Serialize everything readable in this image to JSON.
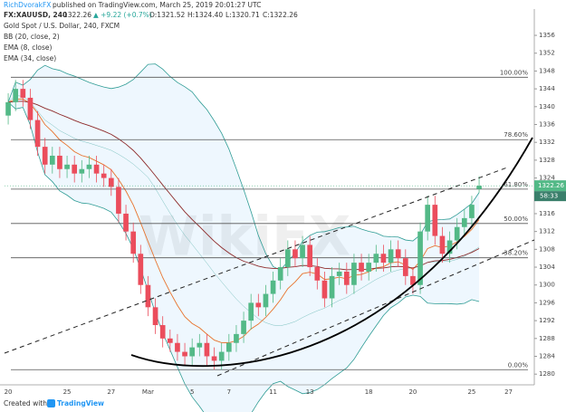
{
  "header": {
    "author": "RichDvorakFX",
    "published": "published on TradingView.com, March 25, 2019 20:01:27 UTC",
    "symbol": "FX:XAUUSD, 240",
    "last": "1322.26",
    "change": "▲ +9.22 (+0.7%)",
    "open": "O:1321.52",
    "high": "H:1324.40",
    "low": "L:1320.71",
    "close": "C:1322.26",
    "instrument": "Gold Spot / U.S. Dollar, 240, FXCM"
  },
  "footer": {
    "created": "Created with",
    "brand": "TradingView"
  },
  "watermark": "WikiFX",
  "chart_data": {
    "type": "candlestick",
    "categories": [
      "20",
      null,
      null,
      null,
      null,
      null,
      null,
      null,
      "25",
      null,
      null,
      null,
      null,
      null,
      "27",
      null,
      null,
      null,
      null,
      "Mar",
      null,
      null,
      null,
      null,
      null,
      "5",
      null,
      null,
      null,
      null,
      "7",
      null,
      null,
      null,
      null,
      null,
      "11",
      null,
      null,
      null,
      null,
      "13",
      null,
      null,
      null,
      null,
      null,
      null,
      null,
      "18",
      null,
      null,
      null,
      null,
      null,
      "20",
      null,
      null,
      null,
      null,
      null,
      null,
      null,
      "25",
      null,
      null,
      null,
      null,
      "27",
      null,
      null,
      null
    ],
    "series": [
      {
        "name": "open",
        "values": [
          1338,
          1341,
          1344,
          1342,
          1337,
          1331,
          1327,
          1329,
          1326,
          1327,
          1325,
          1326,
          1327,
          1325,
          1324,
          1322,
          1316,
          1312,
          1307,
          1300,
          1295,
          1291,
          1288,
          1287,
          1285,
          1284,
          1286,
          1287,
          1284,
          1283,
          1285,
          1287,
          1289,
          1292,
          1296,
          1295,
          1298,
          1301,
          1304,
          1308,
          1306,
          1309,
          1304,
          1301,
          1297,
          1302,
          1303,
          1300,
          1305,
          1303,
          1305,
          1307,
          1305,
          1308,
          1306,
          1302,
          1300,
          1312,
          1318,
          1311,
          1307,
          1310,
          1313,
          1315,
          1321.52,
          null,
          null,
          null,
          null,
          null,
          null,
          null
        ]
      },
      {
        "name": "high",
        "values": [
          1343,
          1346,
          1346,
          1344,
          1339,
          1333,
          1331,
          1331,
          1329,
          1329,
          1328,
          1329,
          1329,
          1327,
          1326,
          1324,
          1318,
          1314,
          1309,
          1302,
          1297,
          1293,
          1290,
          1289,
          1287,
          1288,
          1289,
          1289,
          1286,
          1287,
          1289,
          1291,
          1294,
          1298,
          1298,
          1300,
          1303,
          1306,
          1310,
          1310,
          1311,
          1311,
          1306,
          1303,
          1304,
          1305,
          1305,
          1307,
          1307,
          1307,
          1309,
          1309,
          1310,
          1310,
          1308,
          1304,
          1314,
          1320,
          1320,
          1313,
          1312,
          1315,
          1317,
          1320,
          1324.4,
          null,
          null,
          null,
          null,
          null,
          null,
          null
        ]
      },
      {
        "name": "low",
        "values": [
          1336,
          1339,
          1340,
          1335,
          1329,
          1325,
          1325,
          1324,
          1324,
          1323,
          1323,
          1324,
          1323,
          1322,
          1320,
          1314,
          1310,
          1305,
          1298,
          1293,
          1289,
          1286,
          1285,
          1283,
          1282,
          1282,
          1284,
          1282,
          1281,
          1281,
          1283,
          1285,
          1287,
          1290,
          1293,
          1293,
          1296,
          1299,
          1302,
          1304,
          1304,
          1302,
          1299,
          1295,
          1295,
          1300,
          1298,
          1298,
          1301,
          1301,
          1303,
          1303,
          1303,
          1304,
          1300,
          1298,
          1298,
          1310,
          1309,
          1305,
          1305,
          1308,
          1311,
          1313,
          1320.71,
          null,
          null,
          null,
          null,
          null,
          null,
          null
        ]
      },
      {
        "name": "close",
        "values": [
          1341,
          1344,
          1342,
          1337,
          1331,
          1327,
          1329,
          1326,
          1327,
          1325,
          1326,
          1327,
          1325,
          1324,
          1322,
          1316,
          1312,
          1307,
          1300,
          1295,
          1291,
          1288,
          1287,
          1285,
          1284,
          1286,
          1287,
          1284,
          1283,
          1285,
          1287,
          1289,
          1292,
          1296,
          1295,
          1298,
          1301,
          1304,
          1308,
          1306,
          1309,
          1304,
          1301,
          1297,
          1302,
          1303,
          1300,
          1305,
          1303,
          1305,
          1307,
          1305,
          1308,
          1306,
          1302,
          1300,
          1312,
          1318,
          1311,
          1307,
          1310,
          1313,
          1315,
          1318,
          1322.26,
          null,
          null,
          null,
          null,
          null,
          null,
          null
        ]
      }
    ],
    "up_color": "#53b987",
    "down_color": "#eb4d5c",
    "ylim": [
      1277.6,
      1361.9
    ],
    "yticks": [
      1280,
      1284,
      1288,
      1292,
      1296,
      1300,
      1304,
      1308,
      1312,
      1316,
      1320,
      1324,
      1328,
      1332,
      1336,
      1340,
      1344,
      1348,
      1352,
      1356
    ],
    "grid": false,
    "last_price": {
      "value": 1322.26,
      "label": "1322.26"
    },
    "countdown": "58:33",
    "fib_levels": [
      {
        "value": 1346.6,
        "label": "100.00%"
      },
      {
        "value": 1332.6,
        "label": "78.60%"
      },
      {
        "value": 1321.5,
        "label": "61.80%"
      },
      {
        "value": 1313.8,
        "label": "50.00%"
      },
      {
        "value": 1306.1,
        "label": "38.20%"
      },
      {
        "value": 1281.0,
        "label": "0.00%"
      }
    ],
    "indicators": [
      {
        "name": "BB (20, close, 2)",
        "kind": "bb",
        "period": 20,
        "mult": 2,
        "color": "#2f9c95"
      },
      {
        "name": "EMA (8, close)",
        "kind": "ema",
        "period": 8,
        "color": "#e8722c"
      },
      {
        "name": "EMA (34, close)",
        "kind": "ema",
        "period": 34,
        "color": "#8e2a2a"
      }
    ]
  }
}
